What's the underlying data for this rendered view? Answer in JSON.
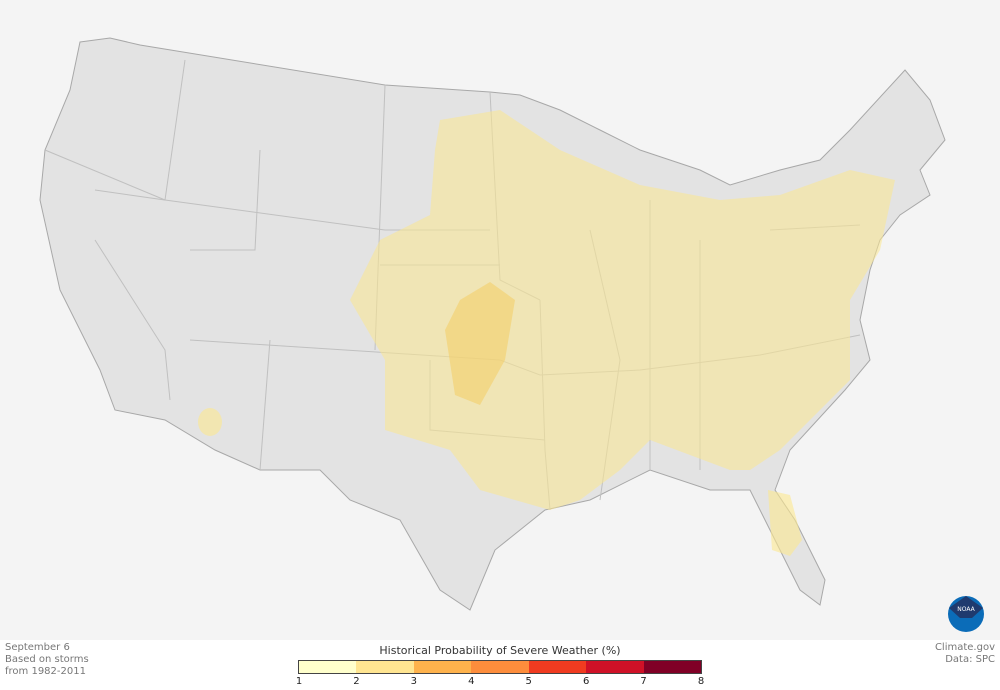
{
  "info": {
    "date": "September 6",
    "line2": "Based on storms",
    "line3": "from 1982-2011"
  },
  "credit": {
    "site": "Climate.gov",
    "data": "Data: SPC"
  },
  "logo": {
    "text": "NOAA"
  },
  "legend": {
    "title": "Historical Probability of Severe Weather (%)",
    "ticks": [
      "1",
      "2",
      "3",
      "4",
      "5",
      "6",
      "7",
      "8"
    ],
    "colors": [
      "#ffffcc",
      "#ffe591",
      "#feb24c",
      "#fd8d3c",
      "#f03b20",
      "#cf1127",
      "#800026"
    ]
  },
  "map_colors": {
    "land": "#e3e3e3",
    "border": "#b4b4b4",
    "prob_1_2": "#f8eebd",
    "prob_2_3": "#f5dd95",
    "background": "#f4f4f4"
  }
}
